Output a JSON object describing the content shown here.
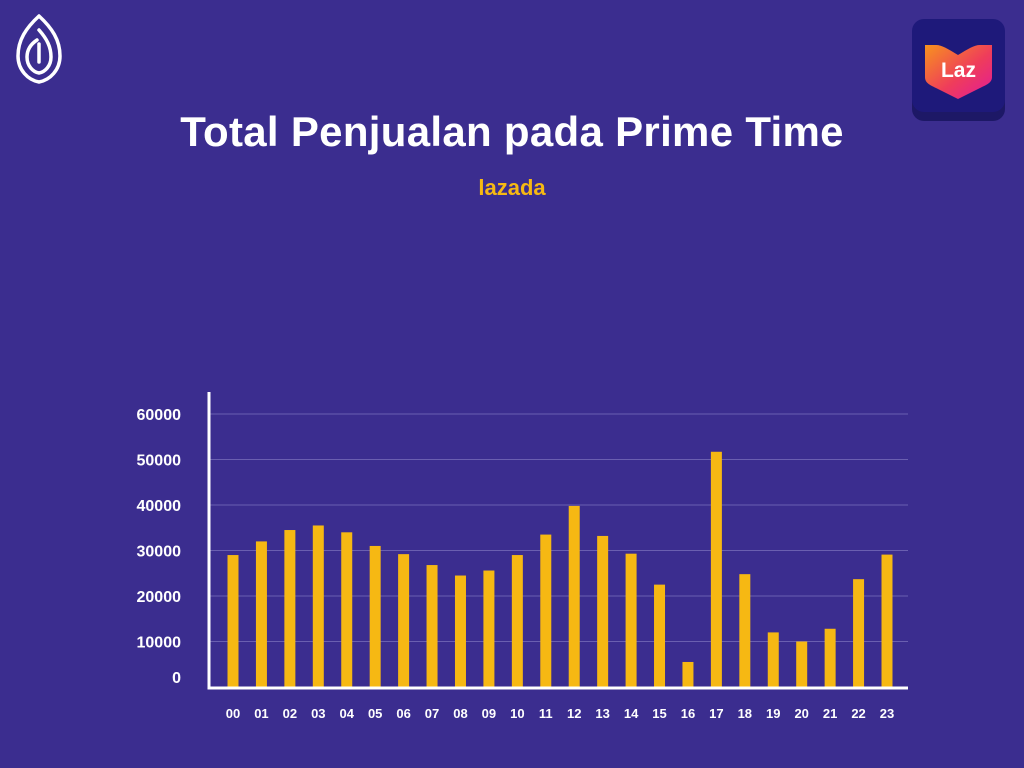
{
  "page": {
    "title": "Total Penjualan pada Prime Time",
    "subtitle": "lazada"
  },
  "badge": {
    "text": "Laz",
    "icon": "lazada-heart-icon"
  },
  "brand": {
    "icon": "leaf-logo-icon"
  },
  "colors": {
    "background": "#3b2d8f",
    "bar": "#f6b813",
    "axis": "#ffffff",
    "grid": "#6a5fb0",
    "subtitle": "#f6b813"
  },
  "chart_data": {
    "type": "bar",
    "categories": [
      "00",
      "01",
      "02",
      "03",
      "04",
      "05",
      "06",
      "07",
      "08",
      "09",
      "10",
      "11",
      "12",
      "13",
      "14",
      "15",
      "16",
      "17",
      "18",
      "19",
      "20",
      "21",
      "22",
      "23"
    ],
    "values": [
      29000,
      32000,
      34500,
      35500,
      34000,
      31000,
      29200,
      26800,
      24500,
      25600,
      29000,
      33500,
      39800,
      33200,
      29300,
      22500,
      5500,
      51700,
      24800,
      12000,
      10000,
      12800,
      23700,
      29100
    ],
    "yticks": [
      "0",
      "10000",
      "20000",
      "30000",
      "40000",
      "50000",
      "60000"
    ],
    "ylim": [
      0,
      60000
    ],
    "grid": true,
    "legend": "none"
  }
}
